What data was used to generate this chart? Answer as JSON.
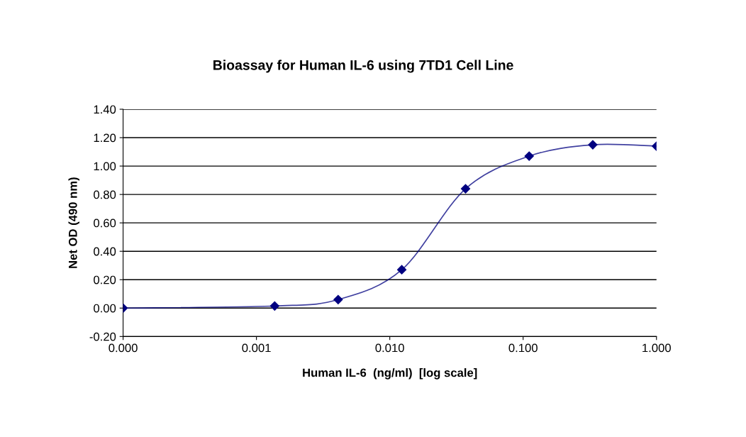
{
  "chart_data": {
    "type": "line",
    "title": "Bioassay for Human IL-6 using 7TD1 Cell Line",
    "xlabel": "Human IL-6  (ng/ml)  [log scale]",
    "ylabel": "Net OD (490 nm)",
    "x": [
      0.0001,
      0.00137,
      0.0041,
      0.0123,
      0.037,
      0.111,
      0.333,
      1.0
    ],
    "series": [
      {
        "color": "#000080",
        "values": [
          0.0,
          0.015,
          0.06,
          0.27,
          0.84,
          1.07,
          1.15,
          1.14
        ]
      }
    ],
    "log": "x",
    "marker": "diamond",
    "line_style": "solid",
    "grid": "y",
    "legend": false,
    "xlim": [
      0.0001,
      1.0
    ],
    "xticks": [
      {
        "value": 0.0001,
        "label": "0.000"
      },
      {
        "value": 0.001,
        "label": "0.001"
      },
      {
        "value": 0.01,
        "label": "0.010"
      },
      {
        "value": 0.1,
        "label": "0.100"
      },
      {
        "value": 1.0,
        "label": "1.000"
      }
    ],
    "ylim": [
      -0.2,
      1.4
    ],
    "yticks": [
      {
        "value": -0.2,
        "label": "-0.20"
      },
      {
        "value": 0.0,
        "label": "0.00"
      },
      {
        "value": 0.2,
        "label": "0.20"
      },
      {
        "value": 0.4,
        "label": "0.40"
      },
      {
        "value": 0.6,
        "label": "0.60"
      },
      {
        "value": 0.8,
        "label": "0.80"
      },
      {
        "value": 1.0,
        "label": "1.00"
      },
      {
        "value": 1.2,
        "label": "1.20"
      },
      {
        "value": 1.4,
        "label": "1.40"
      }
    ]
  }
}
